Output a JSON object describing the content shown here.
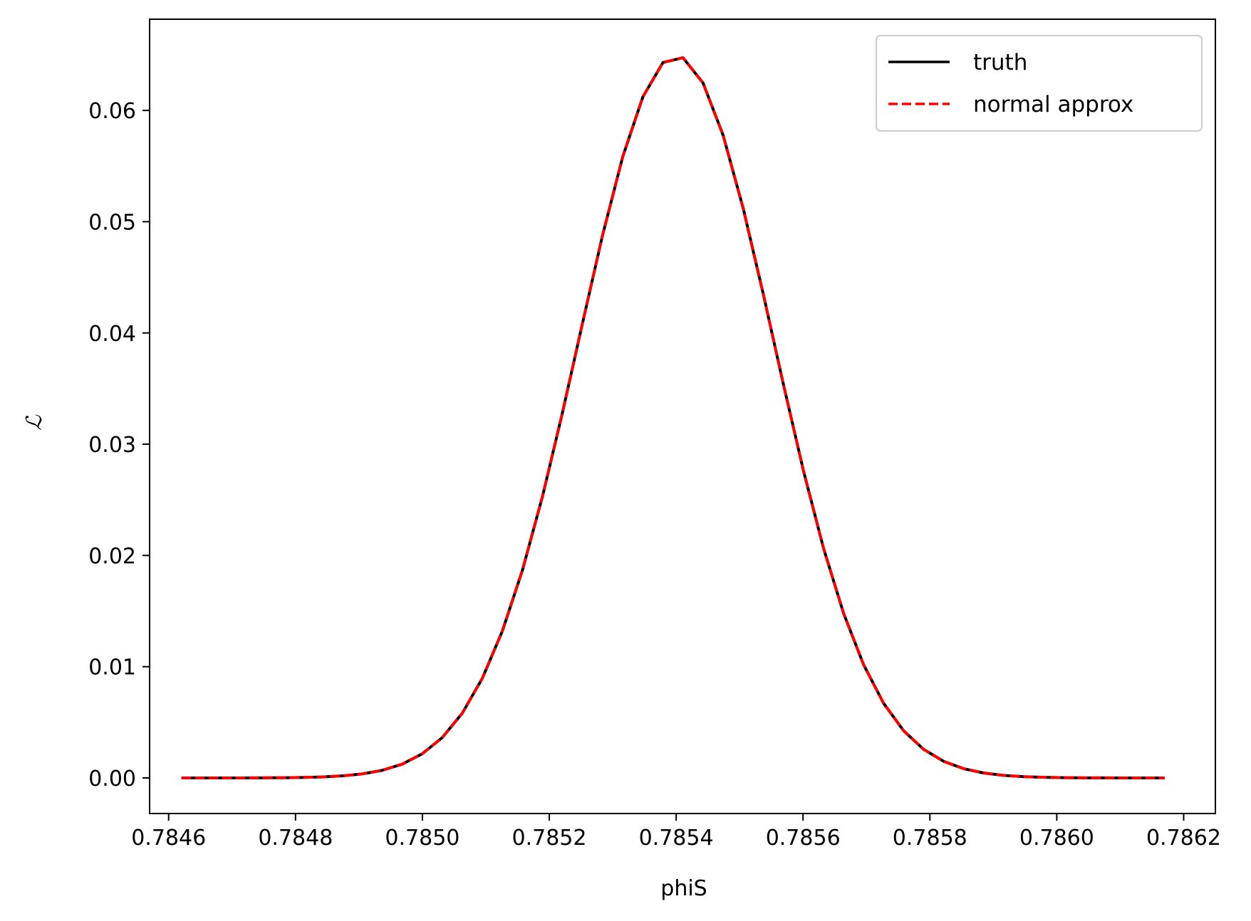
{
  "chart_data": {
    "type": "line",
    "title": "",
    "xlabel": "phiS",
    "ylabel": "ℒ",
    "xlim": [
      0.78457,
      0.78625
    ],
    "ylim": [
      -0.0032,
      0.0682
    ],
    "x_ticks": [
      "0.7846",
      "0.7848",
      "0.7850",
      "0.7852",
      "0.7854",
      "0.7856",
      "0.7858",
      "0.7860",
      "0.7862"
    ],
    "y_ticks": [
      "0.00",
      "0.01",
      "0.02",
      "0.03",
      "0.04",
      "0.05",
      "0.06"
    ],
    "grid": false,
    "legend_position": "top-right",
    "gaussian": {
      "mu": 0.7854,
      "sigma": 0.0001535,
      "peak": 0.0649,
      "x_min": 0.78462,
      "x_max": 0.78617,
      "n_points": 50
    },
    "series": [
      {
        "name": "truth",
        "color": "#000000",
        "style": "solid"
      },
      {
        "name": "normal approx",
        "color": "#ff0000",
        "style": "dashed"
      }
    ]
  }
}
